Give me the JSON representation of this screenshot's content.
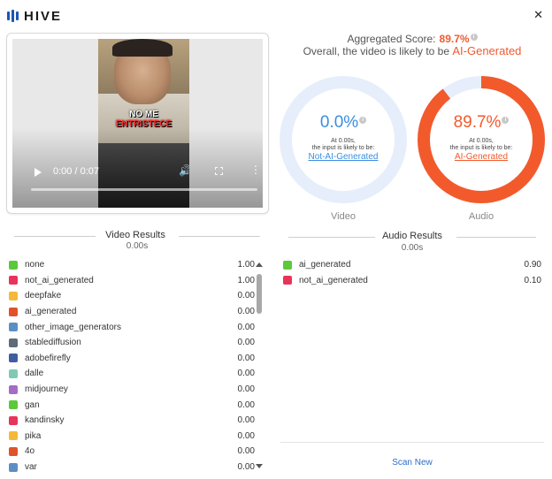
{
  "header": {
    "brand": "HIVE",
    "close_glyph": "✕"
  },
  "video": {
    "caption_line1": "NO ME",
    "caption_line2": "ENTRISTECE",
    "time": "0:00 / 0:07",
    "progress_fraction": 0
  },
  "aggregate": {
    "label": "Aggregated Score:",
    "score": "89.7%",
    "overall_prefix": "Overall, the video is likely to be",
    "overall_verdict": "AI-Generated"
  },
  "donuts": [
    {
      "percent_text": "0.0%",
      "fraction": 0.0,
      "at_text": "At 0.00s,",
      "likely_text": "the input is likely to be:",
      "verdict": "Not-AI-Generated",
      "caption": "Video",
      "color": "#3a8ee0",
      "track_color": "#e6eefb"
    },
    {
      "percent_text": "89.7%",
      "fraction": 0.897,
      "at_text": "At 0.00s,",
      "likely_text": "the input is likely to be:",
      "verdict": "AI-Generated",
      "caption": "Audio",
      "color": "#f25a2c",
      "track_color": "#e6eefb"
    }
  ],
  "video_results": {
    "title": "Video Results",
    "time": "0.00s",
    "items": [
      {
        "name": "none",
        "value": "1.00",
        "color": "#5cc83b"
      },
      {
        "name": "not_ai_generated",
        "value": "1.00",
        "color": "#e8345a"
      },
      {
        "name": "deepfake",
        "value": "0.00",
        "color": "#f4b83a"
      },
      {
        "name": "ai_generated",
        "value": "0.00",
        "color": "#e0522a"
      },
      {
        "name": "other_image_generators",
        "value": "0.00",
        "color": "#5b8fc2"
      },
      {
        "name": "stablediffusion",
        "value": "0.00",
        "color": "#5f6b78"
      },
      {
        "name": "adobefirefly",
        "value": "0.00",
        "color": "#3e5ea0"
      },
      {
        "name": "dalle",
        "value": "0.00",
        "color": "#7fc9b5"
      },
      {
        "name": "midjourney",
        "value": "0.00",
        "color": "#a56cc7"
      },
      {
        "name": "gan",
        "value": "0.00",
        "color": "#5cc83b"
      },
      {
        "name": "kandinsky",
        "value": "0.00",
        "color": "#e8345a"
      },
      {
        "name": "pika",
        "value": "0.00",
        "color": "#f4b83a"
      },
      {
        "name": "4o",
        "value": "0.00",
        "color": "#e0522a"
      },
      {
        "name": "var",
        "value": "0.00",
        "color": "#5b8fc2"
      }
    ]
  },
  "audio_results": {
    "title": "Audio Results",
    "time": "0.00s",
    "items": [
      {
        "name": "ai_generated",
        "value": "0.90",
        "color": "#5cc83b"
      },
      {
        "name": "not_ai_generated",
        "value": "0.10",
        "color": "#e8345a"
      }
    ]
  },
  "actions": {
    "scan_new": "Scan New"
  }
}
